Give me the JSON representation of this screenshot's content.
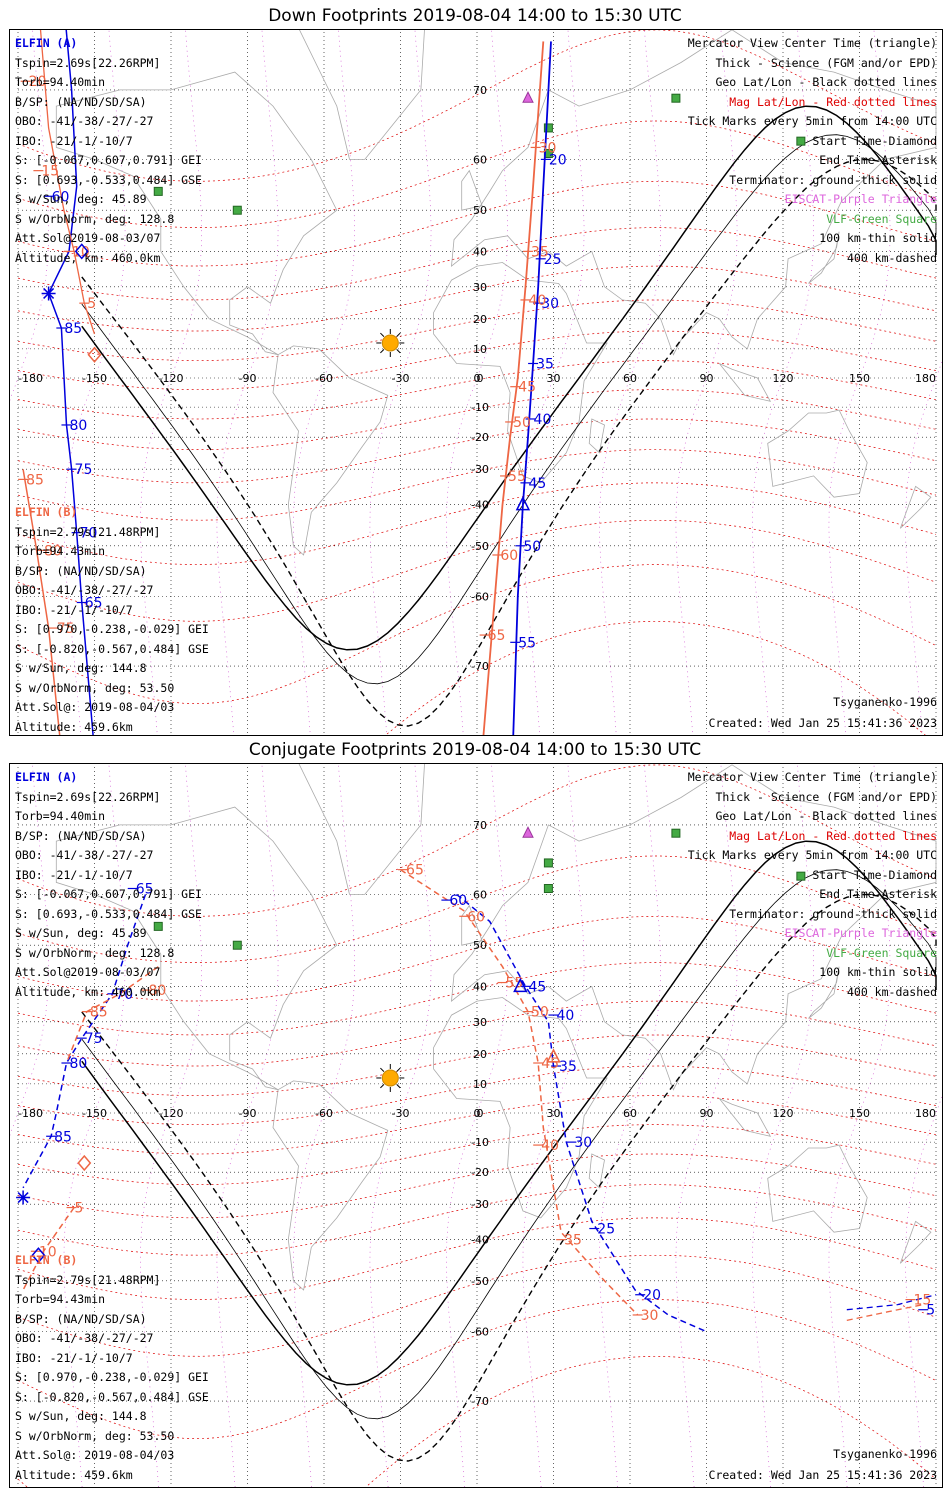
{
  "panels": [
    {
      "title": "Down Footprints 2019-08-04 14:00 to 15:30 UTC",
      "elfin_a": {
        "label": "ELFIN (A)",
        "lines": [
          "Tspin=2.69s[22.26RPM]",
          "Torb=94.40min",
          "B/SP: (NA/ND/SD/SA)",
          "OBO: -41/-38/-27/-27",
          "IBO: -21/-1/-10/7",
          "S: [-0.067,0.607,0.791] GEI",
          "S: [0.693,-0.533,0.484] GSE",
          "S w/Sun, deg: 45.89",
          "S w/OrbNorm, deg: 128.8",
          "Att.Sol@2019-08-03/07",
          "Altitude, km: 460.0km"
        ]
      },
      "elfin_b": {
        "label": "ELFIN (B)",
        "lines": [
          "Tspin=2.79s[21.48RPM]",
          "Torb=94.43min",
          "B/SP: (NA/ND/SD/SA)",
          "OBO: -41/-38/-27/-27",
          "IBO: -21/-1/-10/7",
          "S: [0.970,-0.238,-0.029] GEI",
          "S: [-0.820,-0.567,0.484] GSE",
          "S w/Sun, deg: 144.8",
          "S w/OrbNorm, deg: 53.50",
          "Att.Sol@: 2019-08-04/03",
          "Altitude: 459.6km"
        ]
      },
      "footer_right_1": "Tsyganenko-1996",
      "footer_right_2": "Created: Wed Jan 25 15:41:36 2023"
    },
    {
      "title": "Conjugate Footprints 2019-08-04 14:00 to 15:30 UTC",
      "elfin_a": {
        "label": "ELFIN (A)",
        "lines": [
          "Tspin=2.69s[22.26RPM]",
          "Torb=94.40min",
          "B/SP: (NA/ND/SD/SA)",
          "OBO: -41/-38/-27/-27",
          "IBO: -21/-1/-10/7",
          "S: [-0.067,0.607,0.791] GEI",
          "S: [0.693,-0.533,0.484] GSE",
          "S w/Sun, deg: 45.89",
          "S w/OrbNorm, deg: 128.8",
          "Att.Sol@2019-08-03/07",
          "Altitude, km: 460.0km"
        ]
      },
      "elfin_b": {
        "label": "ELFIN (B)",
        "lines": [
          "Tspin=2.79s[21.48RPM]",
          "Torb=94.43min",
          "B/SP: (NA/ND/SD/SA)",
          "OBO: -41/-38/-27/-27",
          "IBO: -21/-1/-10/7",
          "S: [0.970,-0.238,-0.029] GEI",
          "S: [-0.820,-0.567,0.484] GSE",
          "S w/Sun, deg: 144.8",
          "S w/OrbNorm, deg: 53.50",
          "Att.Sol@: 2019-08-04/03",
          "Altitude: 459.6km"
        ]
      },
      "footer_right_1": "Tsyganenko-1996",
      "footer_right_2": "Created: Wed Jan 25 15:41:36 2023"
    }
  ],
  "legend": [
    {
      "text": "Mercator View Center Time (triangle)",
      "color": "#000000"
    },
    {
      "text": "Thick - Science (FGM and/or EPD)",
      "color": "#000000"
    },
    {
      "text": "Geo Lat/Lon - Black dotted lines",
      "color": "#000000"
    },
    {
      "text": "Mag Lat/Lon - Red dotted lines",
      "color": "#dd0000"
    },
    {
      "text": "Tick Marks every 5min from 14:00 UTC",
      "color": "#000000"
    },
    {
      "text": "Start Time-Diamond",
      "color": "#000000"
    },
    {
      "text": "End Time-Asterisk",
      "color": "#000000"
    },
    {
      "text": "Terminator: ground-thick solid",
      "color": "#000000"
    },
    {
      "text": "EISCAT-Purple Triangle",
      "color": "#dd66dd"
    },
    {
      "text": "VLF-Green Square",
      "color": "#44aa44"
    },
    {
      "text": "100 km-thin solid",
      "color": "#000000"
    },
    {
      "text": "400 km-dashed",
      "color": "#000000"
    }
  ],
  "map_axes": {
    "lon_ticks": [
      "-180",
      "-150",
      "-120",
      "-90",
      "-60",
      "-30",
      "0",
      "30",
      "60",
      "90",
      "120",
      "150",
      "180"
    ],
    "lat_ticks": [
      "70",
      "60",
      "50",
      "40",
      "30",
      "20",
      "10",
      "0",
      "-10",
      "-20",
      "-30",
      "-40",
      "-50",
      "-60",
      "-70"
    ]
  },
  "colors": {
    "elfin_a": "#0000dd",
    "elfin_b": "#ee6644",
    "mag_grid": "#dd0000",
    "geo_grid": "#000000",
    "eiscat": "#dd66dd",
    "vlf": "#44aa44",
    "sun": "#ffaa00"
  },
  "tracks": {
    "down": {
      "a_labels": [
        {
          "t": "20",
          "lon": 27,
          "lat": 60
        },
        {
          "t": "25",
          "lon": 25,
          "lat": 38
        },
        {
          "t": "30",
          "lon": 24,
          "lat": 25
        },
        {
          "t": "35",
          "lon": 22,
          "lat": 5
        },
        {
          "t": "40",
          "lon": 21,
          "lat": -14
        },
        {
          "t": "45",
          "lon": 19,
          "lat": -34
        },
        {
          "t": "50",
          "lon": 17,
          "lat": -50
        },
        {
          "t": "55",
          "lon": 15,
          "lat": -67
        },
        {
          "t": "60",
          "lon": -168,
          "lat": 53
        },
        {
          "t": "85",
          "lon": -163,
          "lat": 17
        },
        {
          "t": "80",
          "lon": -161,
          "lat": -16
        },
        {
          "t": "75",
          "lon": -159,
          "lat": -30
        },
        {
          "t": "70",
          "lon": -157,
          "lat": -47
        },
        {
          "t": "65",
          "lon": -155,
          "lat": -61
        }
      ],
      "b_labels": [
        {
          "t": "30",
          "lon": 23,
          "lat": 62
        },
        {
          "t": "35",
          "lon": 20,
          "lat": 40
        },
        {
          "t": "40",
          "lon": 19,
          "lat": 26
        },
        {
          "t": "45",
          "lon": 15,
          "lat": -3
        },
        {
          "t": "50",
          "lon": 13,
          "lat": -15
        },
        {
          "t": "55",
          "lon": 11,
          "lat": -32
        },
        {
          "t": "60",
          "lon": 8,
          "lat": -52
        },
        {
          "t": "65",
          "lon": 3,
          "lat": -66
        },
        {
          "t": "10",
          "lon": -160,
          "lat": 40
        },
        {
          "t": "5",
          "lon": -154,
          "lat": 25
        },
        {
          "t": "85",
          "lon": -178,
          "lat": -33
        },
        {
          "t": "80",
          "lon": -171,
          "lat": -51
        },
        {
          "t": "75",
          "lon": -166,
          "lat": -65
        },
        {
          "t": "20",
          "lon": -177,
          "lat": 71
        },
        {
          "t": "15",
          "lon": -172,
          "lat": 58
        }
      ]
    },
    "conj": {
      "a_labels": [
        {
          "t": "65",
          "lon": -135,
          "lat": 61
        },
        {
          "t": "70",
          "lon": -143,
          "lat": 38
        },
        {
          "t": "75",
          "lon": -155,
          "lat": 25
        },
        {
          "t": "80",
          "lon": -161,
          "lat": 17
        },
        {
          "t": "85",
          "lon": -167,
          "lat": -8
        },
        {
          "t": "60",
          "lon": -12,
          "lat": 59
        },
        {
          "t": "45",
          "lon": 19,
          "lat": 40
        },
        {
          "t": "40",
          "lon": 30,
          "lat": 32
        },
        {
          "t": "35",
          "lon": 31,
          "lat": 16
        },
        {
          "t": "30",
          "lon": 37,
          "lat": -10
        },
        {
          "t": "25",
          "lon": 46,
          "lat": -37
        },
        {
          "t": "20",
          "lon": 64,
          "lat": -53
        },
        {
          "t": "5",
          "lon": 175,
          "lat": -56
        }
      ],
      "b_labels": [
        {
          "t": "65",
          "lon": -29,
          "lat": 64
        },
        {
          "t": "60",
          "lon": -5,
          "lat": 56
        },
        {
          "t": "55",
          "lon": 10,
          "lat": 41
        },
        {
          "t": "50",
          "lon": 20,
          "lat": 33
        },
        {
          "t": "45",
          "lon": 24,
          "lat": 17
        },
        {
          "t": "40",
          "lon": 24,
          "lat": -11
        },
        {
          "t": "35",
          "lon": 33,
          "lat": -40
        },
        {
          "t": "30",
          "lon": 63,
          "lat": -57
        },
        {
          "t": "15",
          "lon": 170,
          "lat": -54
        },
        {
          "t": "80",
          "lon": -130,
          "lat": 39
        },
        {
          "t": "85",
          "lon": -153,
          "lat": 33
        },
        {
          "t": "5",
          "lon": -159,
          "lat": -31
        },
        {
          "t": "10",
          "lon": -173,
          "lat": -43
        }
      ]
    }
  }
}
